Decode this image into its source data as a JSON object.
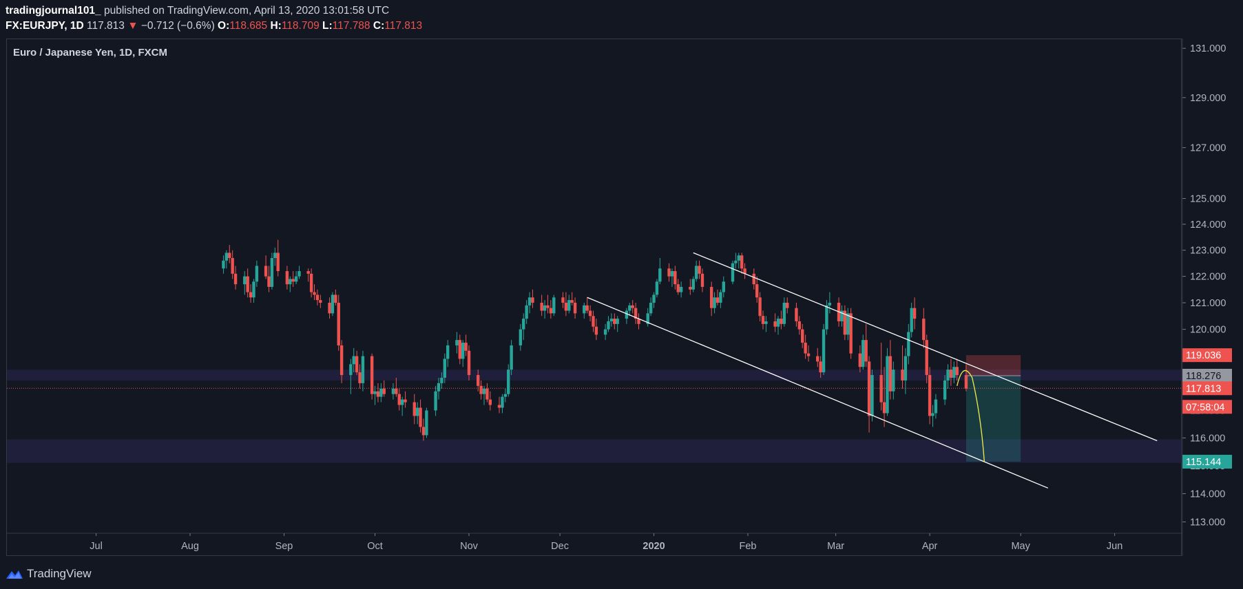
{
  "header": {
    "author": "tradingjournal101_",
    "published": " published on TradingView.com, April 13, 2020 13:01:58 UTC",
    "symbol": "FX:EURJPY, 1D",
    "last": "117.813",
    "change_arrow": "▼",
    "change": "−0.712 (−0.6%)",
    "open_label": "O:",
    "open": "118.685",
    "high_label": "H:",
    "high": "118.709",
    "low_label": "L:",
    "low": "117.788",
    "close_label": "C:",
    "close": "117.813"
  },
  "brand": {
    "name": "TradingView"
  },
  "colors": {
    "background": "#131722",
    "up": "#26a69a",
    "down": "#ef5350",
    "zone": "#2a2650",
    "trendline": "#ffffff",
    "projection": "#e6e34a",
    "grid_border": "#363a45"
  },
  "chart_data": {
    "type": "candlestick",
    "title": "Euro / Japanese Yen, 1D, FXCM",
    "y_scale": "log",
    "ylim": [
      112.6,
      131.4
    ],
    "y_ticks": [
      "131.000",
      "129.000",
      "127.000",
      "125.000",
      "124.000",
      "123.000",
      "122.000",
      "121.000",
      "120.000",
      "119.000",
      "118.000",
      "117.000",
      "116.000",
      "115.000",
      "114.000",
      "113.000"
    ],
    "x_ticks": [
      "Jul",
      "Aug",
      "Sep",
      "Oct",
      "Nov",
      "Dec",
      "2020",
      "Feb",
      "Mar",
      "Apr",
      "May",
      "Jun"
    ],
    "price_labels": [
      {
        "value": "119.036",
        "type": "stop"
      },
      {
        "value": "118.276",
        "type": "entry"
      },
      {
        "value": "117.813",
        "type": "last"
      },
      {
        "value": "07:58:04",
        "type": "countdown"
      },
      {
        "value": "115.144",
        "type": "target"
      }
    ],
    "zones": [
      [
        118.1,
        118.5
      ],
      [
        115.1,
        115.95
      ]
    ],
    "trendlines": [
      {
        "from": [
          "2020-01-14",
          122.9
        ],
        "to": [
          "2020-06-15",
          115.9
        ]
      },
      {
        "from": [
          "2019-12-10",
          121.2
        ],
        "to": [
          "2020-05-10",
          114.2
        ]
      }
    ],
    "position": {
      "type": "short",
      "entry": 118.276,
      "stop": 119.036,
      "target": 115.144,
      "from": "2020-04-13",
      "to": "2020-05-01"
    },
    "projection": [
      [
        "2020-04-10",
        117.9
      ],
      [
        "2020-04-12",
        118.5
      ],
      [
        "2020-04-15",
        118.2
      ],
      [
        "2020-04-17",
        116.8
      ],
      [
        "2020-04-19",
        115.144
      ]
    ],
    "last_price": 117.813,
    "candles_ohlc": [
      [
        122.3,
        122.8,
        122.1,
        122.6
      ],
      [
        122.6,
        123.0,
        122.3,
        122.9
      ],
      [
        122.9,
        123.2,
        122.5,
        122.7
      ],
      [
        122.7,
        123.0,
        121.9,
        122.1
      ],
      [
        122.1,
        122.4,
        121.5,
        121.7
      ],
      [
        121.7,
        122.2,
        121.3,
        122.0
      ],
      [
        122.0,
        122.3,
        121.2,
        121.4
      ],
      [
        121.4,
        121.7,
        121.0,
        121.2
      ],
      [
        121.2,
        121.9,
        121.0,
        121.8
      ],
      [
        121.8,
        122.6,
        121.6,
        122.4
      ],
      [
        122.4,
        122.8,
        121.9,
        122.0
      ],
      [
        122.0,
        122.4,
        121.4,
        121.6
      ],
      [
        121.6,
        122.9,
        121.5,
        122.7
      ],
      [
        122.7,
        123.1,
        122.4,
        122.9
      ],
      [
        122.9,
        123.4,
        122.0,
        122.2
      ],
      [
        122.2,
        122.4,
        121.5,
        121.7
      ],
      [
        121.7,
        122.0,
        121.4,
        121.9
      ],
      [
        121.9,
        122.2,
        121.6,
        121.8
      ],
      [
        121.8,
        122.2,
        121.7,
        122.0
      ],
      [
        122.0,
        122.4,
        121.9,
        122.2
      ],
      [
        122.2,
        122.3,
        121.8,
        122.1
      ],
      [
        122.1,
        122.3,
        121.2,
        121.4
      ],
      [
        121.4,
        121.7,
        121.1,
        121.3
      ],
      [
        121.3,
        121.5,
        120.9,
        121.1
      ],
      [
        121.1,
        121.3,
        120.8,
        121.0
      ],
      [
        121.0,
        121.2,
        120.4,
        120.6
      ],
      [
        120.6,
        121.4,
        120.5,
        121.3
      ],
      [
        121.3,
        121.5,
        120.9,
        121.0
      ],
      [
        121.0,
        121.3,
        119.2,
        119.4
      ],
      [
        119.4,
        119.6,
        118.0,
        118.3
      ],
      [
        118.3,
        118.9,
        117.6,
        118.7
      ],
      [
        118.7,
        119.3,
        118.4,
        119.0
      ],
      [
        119.0,
        119.2,
        118.3,
        118.4
      ],
      [
        118.4,
        118.7,
        117.8,
        118.0
      ],
      [
        118.0,
        119.2,
        117.7,
        119.0
      ],
      [
        119.0,
        119.1,
        117.4,
        117.6
      ],
      [
        117.6,
        117.9,
        117.2,
        117.7
      ],
      [
        117.7,
        118.0,
        117.3,
        117.5
      ],
      [
        117.5,
        118.0,
        117.3,
        117.8
      ],
      [
        117.8,
        118.1,
        117.5,
        117.6
      ],
      [
        117.6,
        118.0,
        117.4,
        117.8
      ],
      [
        117.8,
        118.2,
        117.5,
        117.6
      ],
      [
        117.6,
        117.8,
        117.0,
        117.2
      ],
      [
        117.2,
        117.5,
        116.8,
        117.4
      ],
      [
        117.4,
        117.7,
        117.1,
        117.3
      ],
      [
        117.3,
        117.6,
        116.5,
        116.8
      ],
      [
        116.8,
        117.3,
        116.5,
        117.1
      ],
      [
        117.1,
        117.4,
        116.2,
        116.4
      ],
      [
        116.4,
        116.7,
        115.9,
        116.1
      ],
      [
        116.1,
        117.1,
        116.0,
        117.0
      ],
      [
        117.0,
        117.9,
        116.8,
        117.7
      ],
      [
        117.7,
        118.2,
        117.4,
        118.0
      ],
      [
        118.0,
        118.4,
        117.8,
        118.2
      ],
      [
        118.2,
        119.1,
        118.0,
        118.9
      ],
      [
        118.9,
        119.6,
        118.6,
        119.4
      ],
      [
        119.4,
        119.9,
        119.1,
        119.6
      ],
      [
        119.6,
        119.8,
        118.7,
        118.9
      ],
      [
        118.9,
        119.6,
        118.6,
        119.5
      ],
      [
        119.5,
        119.8,
        119.0,
        119.2
      ],
      [
        119.2,
        119.4,
        118.1,
        118.3
      ],
      [
        118.3,
        118.5,
        117.7,
        117.9
      ],
      [
        117.9,
        118.1,
        117.4,
        117.6
      ],
      [
        117.6,
        117.9,
        117.2,
        117.8
      ],
      [
        117.8,
        118.0,
        117.3,
        117.4
      ],
      [
        117.4,
        117.7,
        117.0,
        117.2
      ],
      [
        117.2,
        117.5,
        116.9,
        117.1
      ],
      [
        117.1,
        117.6,
        116.9,
        117.5
      ],
      [
        117.5,
        117.8,
        117.3,
        117.6
      ],
      [
        117.6,
        118.7,
        117.5,
        118.5
      ],
      [
        118.5,
        119.6,
        118.3,
        119.4
      ],
      [
        119.4,
        120.2,
        119.2,
        120.0
      ],
      [
        120.0,
        120.6,
        119.6,
        120.4
      ],
      [
        120.4,
        121.1,
        120.2,
        120.9
      ],
      [
        120.9,
        121.4,
        120.6,
        121.2
      ],
      [
        121.2,
        121.5,
        120.8,
        121.0
      ],
      [
        121.0,
        121.3,
        120.5,
        120.7
      ],
      [
        120.7,
        121.1,
        120.4,
        120.9
      ],
      [
        120.9,
        121.3,
        120.6,
        120.8
      ],
      [
        120.8,
        121.1,
        120.4,
        120.6
      ],
      [
        120.6,
        121.3,
        120.5,
        121.2
      ],
      [
        121.2,
        121.4,
        120.8,
        121.0
      ],
      [
        121.0,
        121.4,
        120.5,
        120.7
      ],
      [
        120.7,
        121.3,
        120.6,
        121.1
      ],
      [
        121.1,
        121.4,
        120.9,
        121.0
      ],
      [
        121.0,
        121.2,
        120.4,
        120.6
      ],
      [
        120.6,
        121.0,
        120.4,
        120.9
      ],
      [
        120.9,
        121.2,
        120.6,
        120.7
      ],
      [
        120.7,
        120.9,
        120.3,
        120.5
      ],
      [
        120.5,
        120.7,
        119.9,
        120.1
      ],
      [
        120.1,
        120.4,
        119.6,
        119.8
      ],
      [
        119.8,
        120.2,
        119.6,
        120.0
      ],
      [
        120.0,
        120.5,
        119.9,
        120.3
      ],
      [
        120.3,
        120.6,
        120.1,
        120.4
      ],
      [
        120.4,
        120.6,
        120.0,
        120.2
      ],
      [
        120.2,
        120.5,
        119.9,
        120.4
      ],
      [
        120.4,
        120.8,
        120.2,
        120.7
      ],
      [
        120.7,
        121.0,
        120.5,
        120.9
      ],
      [
        120.9,
        121.1,
        120.6,
        120.8
      ],
      [
        120.8,
        121.0,
        120.2,
        120.4
      ],
      [
        120.4,
        120.6,
        120.0,
        120.2
      ],
      [
        120.2,
        120.8,
        120.1,
        120.6
      ],
      [
        120.6,
        121.2,
        120.5,
        121.0
      ],
      [
        121.0,
        121.4,
        120.8,
        121.3
      ],
      [
        121.3,
        121.9,
        121.2,
        121.8
      ],
      [
        121.8,
        122.7,
        121.7,
        122.3
      ],
      [
        122.3,
        122.5,
        121.8,
        122.0
      ],
      [
        122.0,
        122.3,
        121.6,
        122.2
      ],
      [
        122.2,
        122.4,
        121.5,
        121.7
      ],
      [
        121.7,
        121.9,
        121.3,
        121.4
      ],
      [
        121.4,
        121.8,
        121.2,
        121.6
      ],
      [
        121.6,
        121.9,
        121.3,
        121.5
      ],
      [
        121.5,
        122.0,
        121.4,
        121.9
      ],
      [
        121.9,
        122.6,
        121.8,
        122.4
      ],
      [
        122.4,
        122.6,
        121.9,
        122.1
      ],
      [
        122.1,
        122.3,
        121.4,
        121.6
      ],
      [
        121.6,
        121.8,
        120.5,
        120.8
      ],
      [
        120.8,
        121.4,
        120.6,
        121.2
      ],
      [
        121.2,
        121.5,
        120.9,
        121.0
      ],
      [
        121.0,
        121.5,
        120.8,
        121.4
      ],
      [
        121.4,
        122.0,
        121.2,
        121.8
      ],
      [
        121.8,
        122.6,
        121.7,
        122.5
      ],
      [
        122.5,
        122.9,
        122.3,
        122.6
      ],
      [
        122.6,
        122.9,
        122.3,
        122.8
      ],
      [
        122.8,
        122.9,
        122.1,
        122.3
      ],
      [
        122.3,
        122.5,
        121.9,
        122.1
      ],
      [
        122.1,
        122.3,
        121.5,
        121.7
      ],
      [
        121.7,
        122.0,
        121.0,
        121.2
      ],
      [
        121.2,
        121.4,
        120.3,
        120.5
      ],
      [
        120.5,
        120.7,
        120.0,
        120.2
      ],
      [
        120.2,
        120.5,
        119.9,
        120.3
      ],
      [
        120.3,
        120.6,
        119.9,
        120.1
      ],
      [
        120.1,
        120.5,
        119.8,
        120.4
      ],
      [
        120.4,
        120.7,
        120.0,
        120.2
      ],
      [
        120.2,
        121.2,
        120.1,
        121.0
      ],
      [
        121.0,
        121.2,
        120.6,
        120.8
      ],
      [
        120.8,
        121.0,
        120.1,
        120.3
      ],
      [
        120.3,
        120.5,
        119.8,
        120.0
      ],
      [
        120.0,
        120.2,
        119.3,
        119.5
      ],
      [
        119.5,
        119.8,
        118.9,
        119.1
      ],
      [
        119.1,
        119.4,
        118.8,
        119.0
      ],
      [
        119.0,
        119.3,
        118.6,
        118.8
      ],
      [
        118.8,
        119.0,
        118.2,
        118.4
      ],
      [
        118.4,
        120.2,
        118.3,
        120.0
      ],
      [
        120.0,
        121.1,
        119.8,
        120.9
      ],
      [
        120.9,
        121.4,
        120.6,
        121.0
      ],
      [
        121.0,
        121.2,
        120.1,
        120.3
      ],
      [
        120.3,
        120.9,
        120.1,
        120.7
      ],
      [
        120.7,
        120.9,
        119.6,
        119.8
      ],
      [
        119.8,
        120.8,
        119.6,
        120.6
      ],
      [
        120.6,
        120.8,
        118.9,
        119.1
      ],
      [
        119.1,
        119.4,
        118.4,
        118.6
      ],
      [
        118.6,
        119.8,
        118.5,
        119.6
      ],
      [
        119.6,
        120.2,
        118.6,
        118.8
      ],
      [
        118.8,
        119.0,
        116.2,
        116.8
      ],
      [
        116.8,
        118.5,
        116.6,
        118.3
      ],
      [
        118.3,
        119.5,
        117.0,
        117.3
      ],
      [
        117.3,
        118.6,
        116.4,
        116.9
      ],
      [
        116.9,
        119.3,
        116.8,
        119.0
      ],
      [
        119.0,
        119.6,
        117.4,
        117.7
      ],
      [
        117.7,
        118.8,
        117.4,
        118.5
      ],
      [
        118.5,
        119.4,
        117.8,
        118.1
      ],
      [
        118.1,
        119.3,
        117.6,
        119.0
      ],
      [
        119.0,
        120.2,
        118.7,
        119.9
      ],
      [
        119.9,
        121.0,
        119.7,
        120.8
      ],
      [
        120.8,
        121.2,
        120.0,
        120.4
      ],
      [
        120.4,
        120.8,
        119.3,
        119.6
      ],
      [
        119.6,
        119.8,
        118.0,
        118.3
      ],
      [
        118.3,
        118.6,
        116.5,
        116.8
      ],
      [
        116.8,
        117.2,
        116.4,
        116.9
      ],
      [
        116.9,
        117.6,
        116.7,
        117.4
      ],
      [
        117.4,
        118.3,
        117.2,
        118.1
      ],
      [
        118.1,
        118.7,
        117.8,
        118.5
      ],
      [
        118.5,
        118.9,
        117.9,
        118.2
      ],
      [
        118.2,
        118.8,
        118.0,
        118.6
      ],
      [
        118.6,
        118.9,
        118.1,
        118.3
      ],
      [
        118.3,
        118.7,
        117.7,
        117.8
      ]
    ]
  }
}
